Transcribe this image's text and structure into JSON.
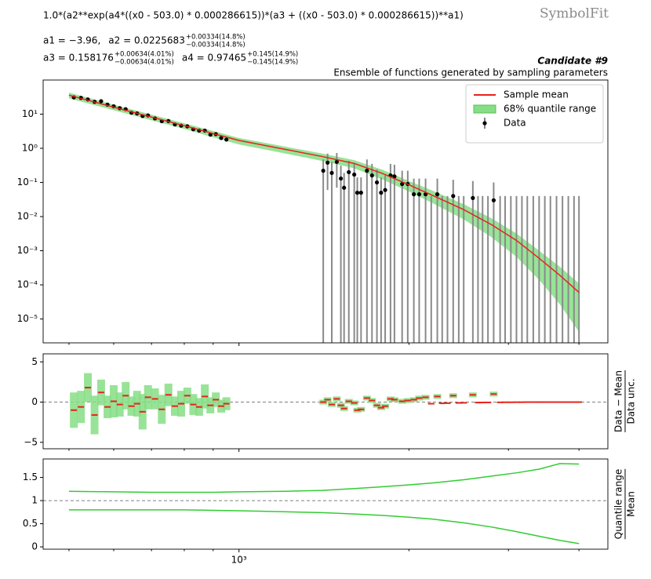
{
  "header": {
    "formula": "1.0*(a2**exp(a4*((x0 - 503.0) * 0.000286615))*(a3 + ((x0 - 503.0) * 0.000286615))**a1)",
    "logo": "SymbolFit",
    "params": [
      {
        "text": "a1 = −3.96,"
      },
      {
        "text": "a2 = 0.0225683",
        "plus": "+0.00334(14.8%)",
        "minus": "−0.00334(14.8%)"
      },
      {
        "text": "a3 = 0.158176",
        "plus": "+0.00634(4.01%)",
        "minus": "−0.00634(4.01%)"
      },
      {
        "text": "a4 = 0.97465",
        "plus": "+0.145(14.9%)",
        "minus": "−0.145(14.9%)"
      }
    ],
    "candidate": "Candidate #9",
    "subtitle": "Ensemble of functions generated by sampling parameters"
  },
  "chart_data": [
    {
      "type": "line",
      "xlog": true,
      "ylog": true,
      "xlim": [
        450,
        4500
      ],
      "ylim": [
        2e-06,
        100
      ],
      "xtickmarks": [
        500,
        600,
        700,
        800,
        900,
        1000,
        2000,
        3000,
        4000
      ],
      "yticks": [
        {
          "value": 1e-05,
          "label": "10⁻⁵"
        },
        {
          "value": 0.0001,
          "label": "10⁻⁴"
        },
        {
          "value": 0.001,
          "label": "10⁻³"
        },
        {
          "value": 0.01,
          "label": "10⁻²"
        },
        {
          "value": 0.1,
          "label": "10⁻¹"
        },
        {
          "value": 1,
          "label": "10⁰"
        },
        {
          "value": 10,
          "label": "10¹"
        }
      ],
      "legend": "upper right",
      "series": [
        {
          "name": "Sample mean",
          "type": "line",
          "color": "#e8221b",
          "x": [
            500,
            600,
            700,
            800,
            900,
            1000,
            1200,
            1400,
            1600,
            1800,
            2000,
            2200,
            2500,
            2800,
            3100,
            3400,
            3700,
            4000
          ],
          "values": [
            36,
            16,
            8.2,
            4.6,
            2.7,
            1.7,
            0.95,
            0.58,
            0.36,
            0.18,
            0.085,
            0.042,
            0.016,
            0.0058,
            0.002,
            0.0006,
            0.00019,
            6e-05
          ]
        },
        {
          "name": "68% quantile range",
          "type": "band",
          "color": "#86de86",
          "x": [
            500,
            600,
            700,
            800,
            900,
            1000,
            1200,
            1400,
            1600,
            1800,
            2000,
            2200,
            2500,
            2800,
            3100,
            3400,
            3700,
            4000
          ],
          "upper": [
            43,
            19,
            9.7,
            5.4,
            3.2,
            2.0,
            1.14,
            0.71,
            0.45,
            0.23,
            0.11,
            0.058,
            0.023,
            0.0089,
            0.0032,
            0.001,
            0.00034,
            0.00011
          ],
          "lower": [
            29,
            13,
            6.6,
            3.7,
            2.1,
            1.3,
            0.72,
            0.43,
            0.26,
            0.12,
            0.054,
            0.025,
            0.0083,
            0.0025,
            0.00066,
            0.00014,
            2.7e-05,
            4.2e-06
          ]
        },
        {
          "name": "Data",
          "type": "errorbar",
          "color": "#000000",
          "ecolor": "#8a8a8a",
          "x": [
            510,
            525,
            540,
            555,
            570,
            585,
            600,
            615,
            630,
            645,
            660,
            675,
            690,
            710,
            730,
            750,
            770,
            790,
            810,
            830,
            850,
            870,
            890,
            910,
            930,
            950,
            1410,
            1435,
            1460,
            1490,
            1515,
            1535,
            1565,
            1600,
            1620,
            1645,
            1685,
            1720,
            1755,
            1785,
            1815,
            1855,
            1885,
            1945,
            1990,
            2040,
            2085,
            2140,
            2190,
            2245,
            2290,
            2340,
            2395,
            2450,
            2500,
            2595,
            2650,
            2700,
            2760,
            2825,
            2900,
            2960,
            3030,
            3100,
            3170,
            3240,
            3320,
            3400,
            3480,
            3560,
            3650,
            3740,
            3830,
            3920,
            4000
          ],
          "values": [
            31,
            30,
            27,
            23,
            24,
            19,
            17,
            15,
            14,
            11,
            10.5,
            8.8,
            9.2,
            7.5,
            6.2,
            6.3,
            5.0,
            4.6,
            4.4,
            3.6,
            3.3,
            3.3,
            2.5,
            2.6,
            2.0,
            1.8,
            0.22,
            0.38,
            0.19,
            0.4,
            0.13,
            0.07,
            0.2,
            0.17,
            0.05,
            0.05,
            0.22,
            0.16,
            0.1,
            0.05,
            0.06,
            0.16,
            0.15,
            0.09,
            0.09,
            0.045,
            0.045,
            0.045,
            0,
            0.045,
            0,
            0,
            0.04,
            0,
            0,
            0.035,
            0,
            0,
            0,
            0.03,
            0,
            0,
            0,
            0,
            0,
            0,
            0,
            0,
            0,
            0,
            0,
            0,
            0,
            0,
            0
          ],
          "yerr": [
            2.5,
            2.4,
            2.2,
            1.9,
            1.9,
            1.5,
            1.4,
            1.2,
            1.1,
            0.9,
            0.8,
            0.7,
            0.7,
            0.6,
            0.5,
            0.5,
            0.4,
            0.4,
            0.35,
            0.3,
            0.27,
            0.27,
            0.2,
            0.2,
            0.17,
            0.15,
            0.25,
            0.32,
            0.22,
            0.33,
            0.18,
            0.12,
            0.23,
            0.2,
            0.09,
            0.09,
            0.25,
            0.19,
            0.14,
            0.09,
            0.1,
            0.19,
            0.18,
            0.13,
            0.13,
            0.085,
            0.085,
            0.085,
            0.04,
            0.085,
            0.04,
            0.04,
            0.08,
            0.04,
            0.04,
            0.075,
            0.04,
            0.04,
            0.04,
            0.07,
            0.04,
            0.04,
            0.04,
            0.04,
            0.04,
            0.04,
            0.04,
            0.04,
            0.04,
            0.04,
            0.04,
            0.04,
            0.04,
            0.04,
            0.04
          ]
        }
      ]
    },
    {
      "type": "pull",
      "xlog": true,
      "xlim": [
        450,
        4500
      ],
      "ylim": [
        -5.8,
        6.0
      ],
      "xtickmarks": [
        500,
        600,
        700,
        800,
        900,
        1000,
        2000,
        3000,
        4000
      ],
      "yticks": [
        {
          "value": -5,
          "label": "−5"
        },
        0,
        5
      ],
      "refline": 0,
      "ylabel_numerator": "Data − Mean",
      "ylabel_denominator": "Data unc.",
      "series": [
        {
          "type": "pull",
          "color": "#e8221b",
          "band_color": "#86de86",
          "x": [
            510,
            525,
            540,
            555,
            570,
            585,
            600,
            615,
            630,
            645,
            660,
            675,
            690,
            710,
            730,
            750,
            770,
            790,
            810,
            830,
            850,
            870,
            890,
            910,
            930,
            950,
            1410,
            1435,
            1460,
            1490,
            1515,
            1535,
            1565,
            1600,
            1620,
            1645,
            1685,
            1720,
            1755,
            1785,
            1815,
            1855,
            1885,
            1945,
            1990,
            2040,
            2085,
            2140,
            2190,
            2245,
            2290,
            2340,
            2395,
            2450,
            2500,
            2595,
            2650,
            2700,
            2760,
            2825,
            2900,
            2960,
            3030,
            3100,
            3170,
            3240,
            3320,
            3400,
            3480,
            3560,
            3650,
            3740,
            3830,
            3920,
            4000
          ],
          "values": [
            -1,
            -0.6,
            1.8,
            -1.6,
            1.2,
            -0.6,
            0.1,
            -0.3,
            0.8,
            -0.5,
            -0.2,
            -1.2,
            0.6,
            0.4,
            -0.9,
            0.9,
            -0.5,
            -0.2,
            0.8,
            -0.3,
            -0.6,
            0.7,
            -0.4,
            0.3,
            -0.5,
            -0.2,
            0,
            0.3,
            -0.3,
            0.4,
            -0.4,
            -0.8,
            0.1,
            -0.1,
            -1.0,
            -0.9,
            0.5,
            0.2,
            -0.4,
            -0.7,
            -0.5,
            0.4,
            0.3,
            0.1,
            0.2,
            0.3,
            0.5,
            0.6,
            -0.2,
            0.7,
            -0.15,
            -0.13,
            0.8,
            -0.1,
            -0.09,
            0.9,
            -0.06,
            -0.05,
            -0.04,
            1.0,
            -0.03,
            -0.02,
            -0.02,
            -0.01,
            -0.01,
            0,
            0,
            0,
            0,
            0,
            0,
            0,
            0,
            0,
            0
          ],
          "halfwidth": [
            2.2,
            2,
            1.8,
            2.4,
            1.6,
            1.4,
            2,
            1.5,
            1.7,
            1.2,
            1.6,
            2.2,
            1.5,
            1.3,
            1.8,
            1.4,
            1.2,
            1.6,
            1,
            1.3,
            1.1,
            1.5,
            1,
            0.9,
            0.8,
            0.8,
            0.3,
            0.3,
            0.3,
            0.3,
            0.3,
            0.3,
            0.3,
            0.3,
            0.3,
            0.3,
            0.3,
            0.3,
            0.3,
            0.3,
            0.3,
            0.3,
            0.3,
            0.3,
            0.3,
            0.3,
            0.3,
            0.3,
            0.05,
            0.3,
            0.05,
            0.05,
            0.3,
            0.05,
            0.05,
            0.3,
            0.05,
            0.05,
            0.05,
            0.3,
            0.03,
            0.03,
            0.03,
            0.03,
            0.03,
            0.03,
            0.03,
            0.03,
            0.03,
            0.03,
            0.03,
            0.03,
            0.03,
            0.03,
            0.03
          ]
        }
      ]
    },
    {
      "type": "line",
      "xlog": true,
      "xlim": [
        450,
        4500
      ],
      "ylim": [
        -0.05,
        1.9
      ],
      "xtickmarks": [
        500,
        600,
        700,
        800,
        900,
        1000,
        2000,
        3000,
        4000
      ],
      "xticks": [
        {
          "value": 1000,
          "label": "10³"
        }
      ],
      "yticks": [
        0,
        0.5,
        1,
        1.5
      ],
      "refline": 1,
      "ylabel_numerator": "Quantile range",
      "ylabel_denominator": "Mean",
      "series": [
        {
          "type": "line",
          "color": "#33cc33",
          "x": [
            500,
            600,
            700,
            800,
            900,
            1000,
            1200,
            1400,
            1600,
            1800,
            2000,
            2200,
            2500,
            2800,
            3100,
            3400,
            3700,
            4000
          ],
          "values": [
            1.2,
            1.19,
            1.18,
            1.18,
            1.18,
            1.19,
            1.2,
            1.22,
            1.26,
            1.3,
            1.34,
            1.38,
            1.45,
            1.53,
            1.6,
            1.68,
            1.8,
            1.79
          ]
        },
        {
          "type": "line",
          "color": "#33cc33",
          "x": [
            500,
            600,
            700,
            800,
            900,
            1000,
            1200,
            1400,
            1600,
            1800,
            2000,
            2200,
            2500,
            2800,
            3100,
            3400,
            3700,
            4000
          ],
          "values": [
            0.8,
            0.8,
            0.8,
            0.8,
            0.79,
            0.78,
            0.76,
            0.74,
            0.71,
            0.68,
            0.64,
            0.6,
            0.52,
            0.43,
            0.33,
            0.23,
            0.14,
            0.07
          ]
        }
      ]
    }
  ]
}
